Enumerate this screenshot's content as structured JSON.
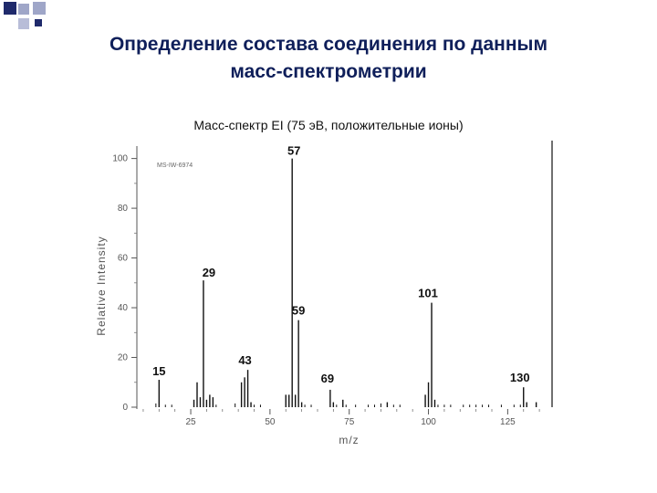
{
  "slide": {
    "title": "Определение состава соединения по данным\nмасс-спектрометрии",
    "accent": "#1f2a6b",
    "accent_light": "#9fa6c8"
  },
  "chart_data": {
    "type": "bar",
    "title": "Масс-спектр EI (75 эВ, положительные ионы)",
    "xlabel": "m/z",
    "ylabel": "Relative Intensity",
    "corner_tag": "MS-IW-6974",
    "xlim": [
      8,
      139
    ],
    "ylim": [
      0,
      105
    ],
    "xticks": [
      25,
      50,
      75,
      100,
      125
    ],
    "yticks": [
      0,
      20,
      40,
      60,
      80,
      100
    ],
    "ytick_labels": [
      "0",
      "20",
      "40",
      "60",
      "80",
      "100"
    ],
    "peaks": [
      {
        "mz": 15,
        "intensity": 11,
        "label": "15"
      },
      {
        "mz": 26,
        "intensity": 3
      },
      {
        "mz": 27,
        "intensity": 10
      },
      {
        "mz": 28,
        "intensity": 4
      },
      {
        "mz": 29,
        "intensity": 51,
        "label": "29"
      },
      {
        "mz": 30,
        "intensity": 3
      },
      {
        "mz": 31,
        "intensity": 5
      },
      {
        "mz": 32,
        "intensity": 4
      },
      {
        "mz": 41,
        "intensity": 10
      },
      {
        "mz": 42,
        "intensity": 12
      },
      {
        "mz": 43,
        "intensity": 15,
        "label": "43"
      },
      {
        "mz": 44,
        "intensity": 2
      },
      {
        "mz": 55,
        "intensity": 5
      },
      {
        "mz": 56,
        "intensity": 5
      },
      {
        "mz": 57,
        "intensity": 100,
        "label": "57"
      },
      {
        "mz": 58,
        "intensity": 5
      },
      {
        "mz": 59,
        "intensity": 35,
        "label": "59"
      },
      {
        "mz": 60,
        "intensity": 2
      },
      {
        "mz": 69,
        "intensity": 7,
        "label": "69"
      },
      {
        "mz": 70,
        "intensity": 2
      },
      {
        "mz": 73,
        "intensity": 3
      },
      {
        "mz": 87,
        "intensity": 2
      },
      {
        "mz": 99,
        "intensity": 5
      },
      {
        "mz": 100,
        "intensity": 10
      },
      {
        "mz": 101,
        "intensity": 42,
        "label": "101"
      },
      {
        "mz": 102,
        "intensity": 3
      },
      {
        "mz": 130,
        "intensity": 8,
        "label": "130"
      },
      {
        "mz": 131,
        "intensity": 2
      },
      {
        "mz": 134,
        "intensity": 2
      }
    ],
    "noise_peaks": [
      {
        "mz": 14,
        "intensity": 1.5
      },
      {
        "mz": 17,
        "intensity": 1
      },
      {
        "mz": 19,
        "intensity": 1
      },
      {
        "mz": 33,
        "intensity": 1
      },
      {
        "mz": 39,
        "intensity": 1.5
      },
      {
        "mz": 45,
        "intensity": 1
      },
      {
        "mz": 47,
        "intensity": 1
      },
      {
        "mz": 61,
        "intensity": 1
      },
      {
        "mz": 63,
        "intensity": 1
      },
      {
        "mz": 71,
        "intensity": 1
      },
      {
        "mz": 74,
        "intensity": 1
      },
      {
        "mz": 77,
        "intensity": 1
      },
      {
        "mz": 81,
        "intensity": 1
      },
      {
        "mz": 83,
        "intensity": 1
      },
      {
        "mz": 85,
        "intensity": 1.5
      },
      {
        "mz": 89,
        "intensity": 1
      },
      {
        "mz": 91,
        "intensity": 1
      },
      {
        "mz": 103,
        "intensity": 1
      },
      {
        "mz": 105,
        "intensity": 1
      },
      {
        "mz": 107,
        "intensity": 1
      },
      {
        "mz": 111,
        "intensity": 1
      },
      {
        "mz": 113,
        "intensity": 1
      },
      {
        "mz": 115,
        "intensity": 1
      },
      {
        "mz": 117,
        "intensity": 1
      },
      {
        "mz": 119,
        "intensity": 1
      },
      {
        "mz": 123,
        "intensity": 1
      },
      {
        "mz": 127,
        "intensity": 1
      },
      {
        "mz": 129,
        "intensity": 1
      }
    ],
    "grid": false,
    "bar_color": "#111111"
  }
}
